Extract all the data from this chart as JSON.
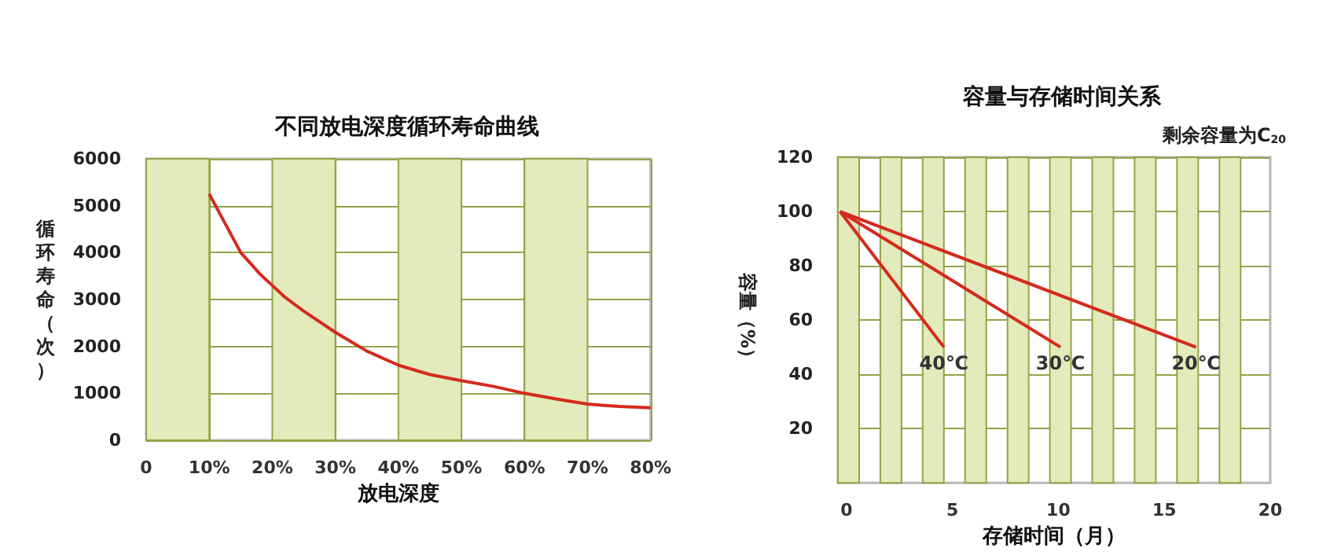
{
  "chart_data": [
    {
      "type": "line",
      "title": "不同放电深度循环寿命曲线",
      "xlabel": "放电深度",
      "ylabel": "循环寿命（次）",
      "x": [
        10,
        12,
        15,
        18,
        20,
        22,
        25,
        30,
        35,
        40,
        45,
        50,
        55,
        60,
        65,
        70,
        75,
        80
      ],
      "series": [
        {
          "color": "#d42a1c",
          "values": [
            5250,
            4750,
            4000,
            3550,
            3300,
            3050,
            2750,
            2300,
            1900,
            1600,
            1400,
            1270,
            1150,
            1000,
            880,
            770,
            720,
            690
          ]
        }
      ],
      "xlim": [
        0,
        80
      ],
      "xticks": [
        0,
        {
          "value": 10,
          "label": "10%"
        },
        {
          "value": 20,
          "label": "20%"
        },
        {
          "value": 30,
          "label": "30%"
        },
        {
          "value": 40,
          "label": "40%"
        },
        {
          "value": 50,
          "label": "50%"
        },
        {
          "value": 60,
          "label": "60%"
        },
        {
          "value": 70,
          "label": "70%"
        },
        {
          "value": 80,
          "label": "80%"
        }
      ],
      "ylim": [
        0,
        6000
      ],
      "yticks": [
        0,
        1000,
        2000,
        3000,
        4000,
        5000,
        6000
      ],
      "grid": true,
      "marker": "none",
      "line_style": "solid",
      "bands": [
        {
          "axis": "x",
          "from": 0,
          "to": 10,
          "color": "#e3eabb"
        },
        {
          "axis": "x",
          "from": 20,
          "to": 30,
          "color": "#e3eabb"
        },
        {
          "axis": "x",
          "from": 40,
          "to": 50,
          "color": "#e3eabb"
        },
        {
          "axis": "x",
          "from": 60,
          "to": 70,
          "color": "#e3eabb"
        }
      ]
    },
    {
      "type": "line",
      "title": "容量与存储时间关系",
      "xlabel": "存储时间（月）",
      "ylabel": "容量（%）",
      "annotations": [
        "剩余容量为C$_{20}$"
      ],
      "series": [
        {
          "name": "40℃",
          "color": "#d42a1c",
          "x": [
            -0.3,
            4.6
          ],
          "values": [
            100,
            50
          ]
        },
        {
          "name": "30℃",
          "color": "#d42a1c",
          "x": [
            -0.3,
            10.1
          ],
          "values": [
            100,
            50
          ]
        },
        {
          "name": "20℃",
          "color": "#d42a1c",
          "x": [
            -0.3,
            16.5
          ],
          "values": [
            100,
            50
          ]
        }
      ],
      "xlim": [
        -0.4,
        20
      ],
      "xticks": [
        0,
        5,
        10,
        15,
        20
      ],
      "ylim": [
        0,
        120
      ],
      "yticks": [
        20,
        40,
        60,
        80,
        100,
        120
      ],
      "grid": "y",
      "marker": "none",
      "line_style": "solid",
      "bands": [
        {
          "axis": "x",
          "from": -0.4,
          "to": 0.6,
          "color": "#e3eabb"
        },
        {
          "axis": "x",
          "from": 1.6,
          "to": 2.6,
          "color": "#e3eabb"
        },
        {
          "axis": "x",
          "from": 3.6,
          "to": 4.6,
          "color": "#e3eabb"
        },
        {
          "axis": "x",
          "from": 5.6,
          "to": 6.6,
          "color": "#e3eabb"
        },
        {
          "axis": "x",
          "from": 7.6,
          "to": 8.6,
          "color": "#e3eabb"
        },
        {
          "axis": "x",
          "from": 9.6,
          "to": 10.6,
          "color": "#e3eabb"
        },
        {
          "axis": "x",
          "from": 11.6,
          "to": 12.6,
          "color": "#e3eabb"
        },
        {
          "axis": "x",
          "from": 13.6,
          "to": 14.6,
          "color": "#e3eabb"
        },
        {
          "axis": "x",
          "from": 15.6,
          "to": 16.6,
          "color": "#e3eabb"
        },
        {
          "axis": "x",
          "from": 17.6,
          "to": 18.6,
          "color": "#e3eabb"
        }
      ]
    }
  ]
}
